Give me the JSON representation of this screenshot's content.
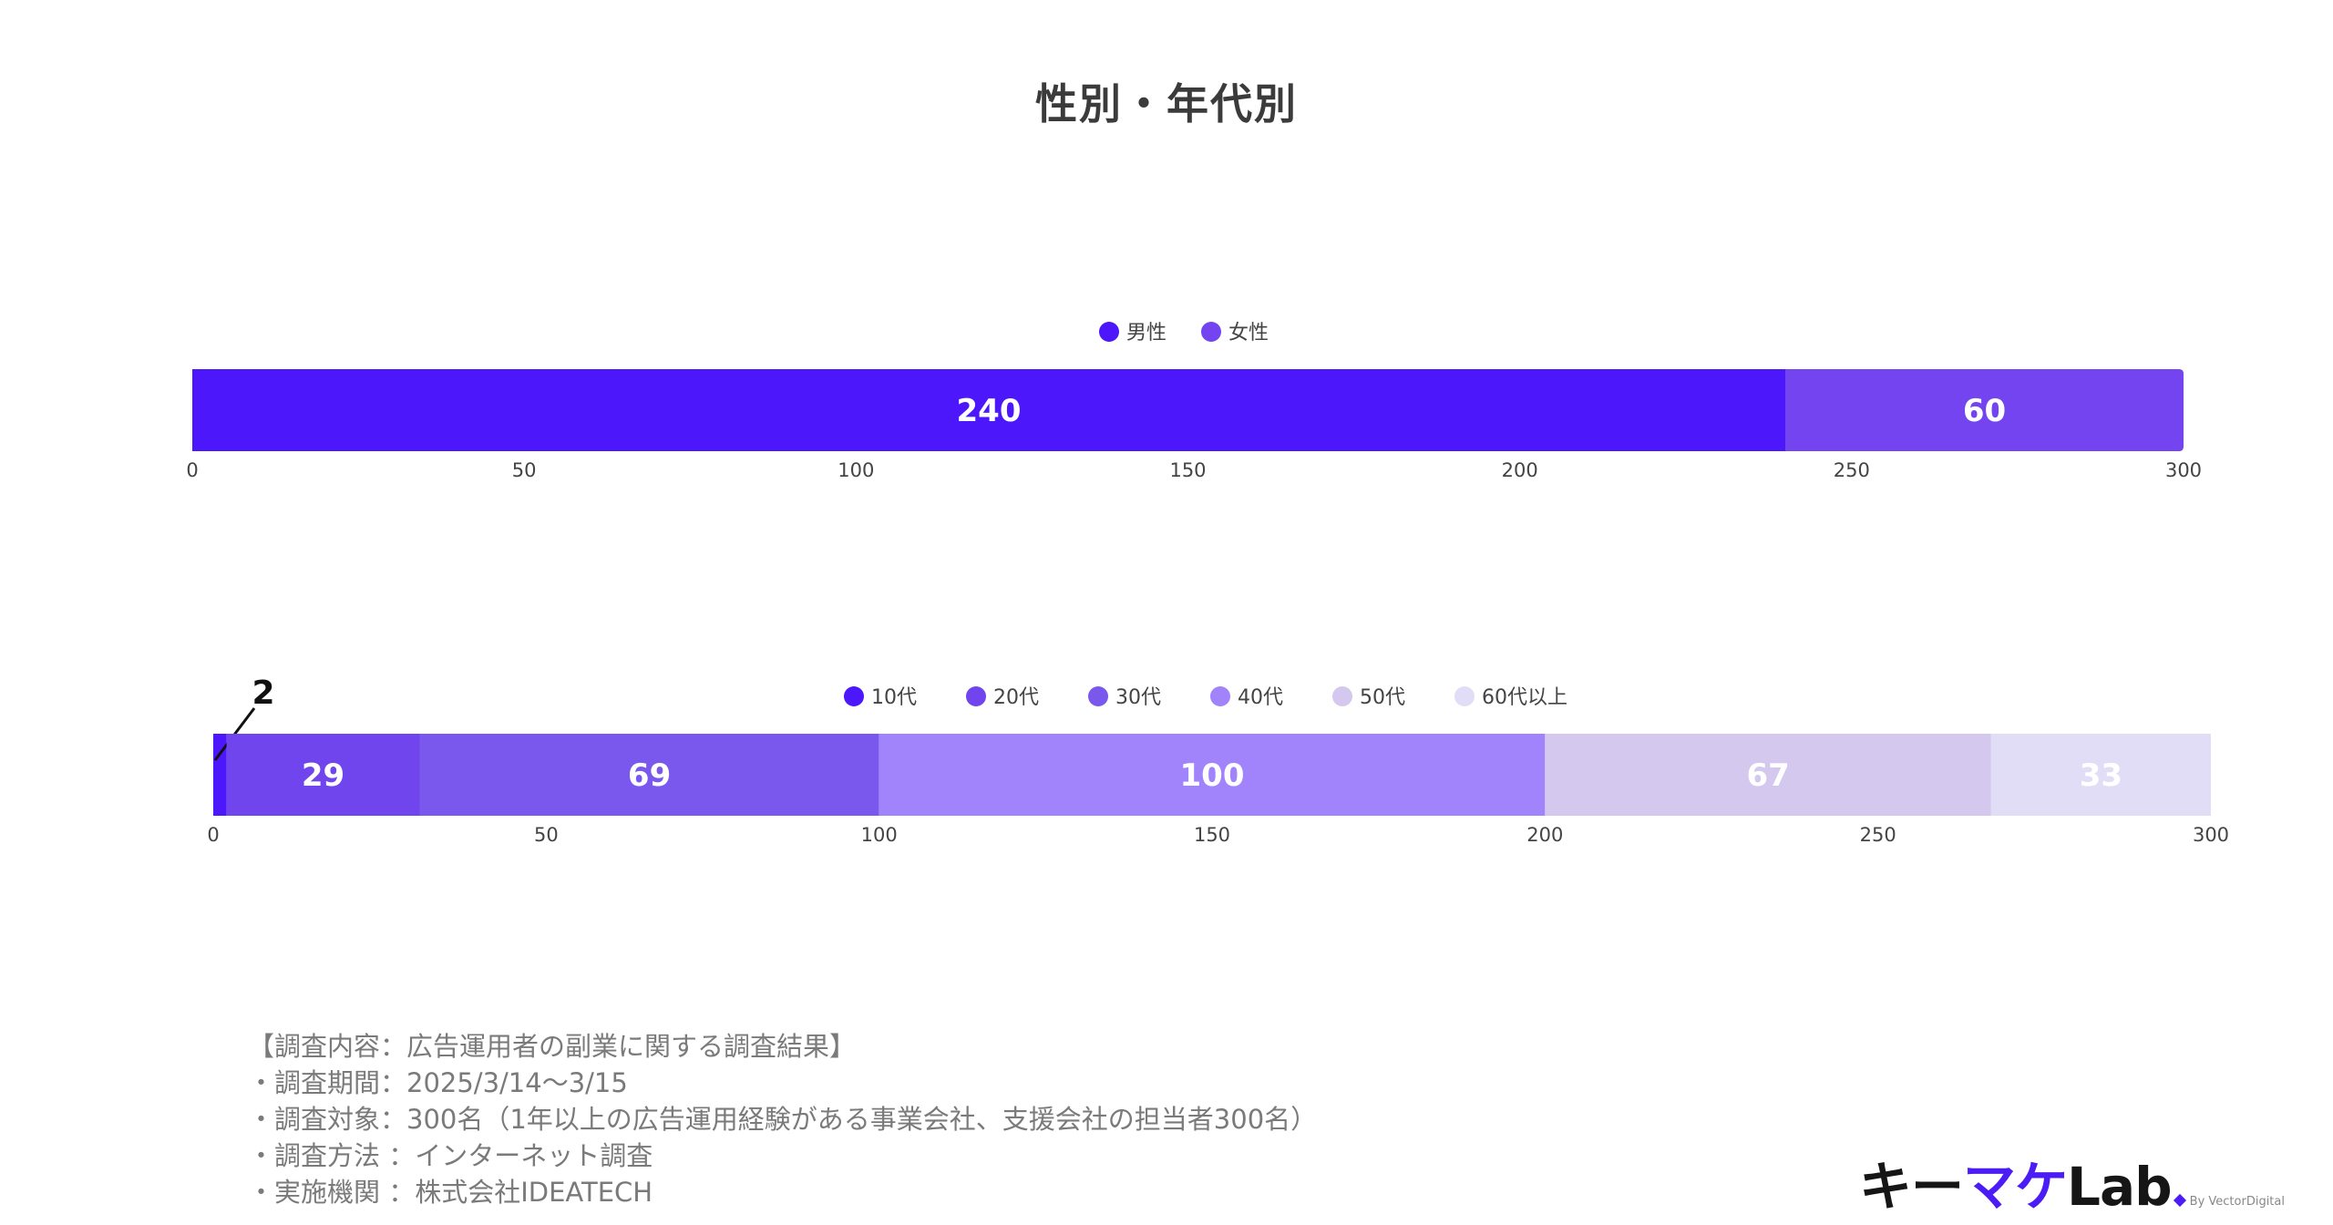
{
  "title": "性別・年代別",
  "chart_data": [
    {
      "type": "bar",
      "orientation": "horizontal-stacked",
      "xlim": [
        0,
        300
      ],
      "ticks": [
        0,
        50,
        100,
        150,
        200,
        250,
        300
      ],
      "legend_position": "top-center",
      "series": [
        {
          "name": "男性",
          "values": [
            240
          ],
          "color": "#4c17fb",
          "label_color": "#ffffff"
        },
        {
          "name": "女性",
          "values": [
            60
          ],
          "color": "#7344f0",
          "label_color": "#ffffff"
        }
      ]
    },
    {
      "type": "bar",
      "orientation": "horizontal-stacked",
      "xlim": [
        0,
        300
      ],
      "ticks": [
        0,
        50,
        100,
        150,
        200,
        250,
        300
      ],
      "legend_position": "top-center",
      "series": [
        {
          "name": "10代",
          "values": [
            2
          ],
          "color": "#4c17fb",
          "label_color": "#111111",
          "callout": true
        },
        {
          "name": "20代",
          "values": [
            29
          ],
          "color": "#7145ee",
          "label_color": "#ffffff"
        },
        {
          "name": "30代",
          "values": [
            69
          ],
          "color": "#7a58ee",
          "label_color": "#ffffff"
        },
        {
          "name": "40代",
          "values": [
            100
          ],
          "color": "#a183fb",
          "label_color": "#ffffff"
        },
        {
          "name": "50代",
          "values": [
            67
          ],
          "color": "#d4c8ee",
          "label_color": "#ffffff"
        },
        {
          "name": "60代以上",
          "values": [
            33
          ],
          "color": "#e1ddf6",
          "label_color": "#ffffff"
        }
      ]
    }
  ],
  "notes": [
    "【調査内容：広告運用者の副業に関する調査結果】",
    "・調査期間：2025/3/14〜3/15",
    "・調査対象：300名（1年以上の広告運用経験がある事業会社、支援会社の担当者300名）",
    "・調査方法 ：インターネット調査",
    "・実施機関 ：株式会社IDEATECH"
  ],
  "logo": {
    "part1": "キー",
    "part2": "マケ",
    "part3": "Lab",
    "by": "By VectorDigital"
  }
}
